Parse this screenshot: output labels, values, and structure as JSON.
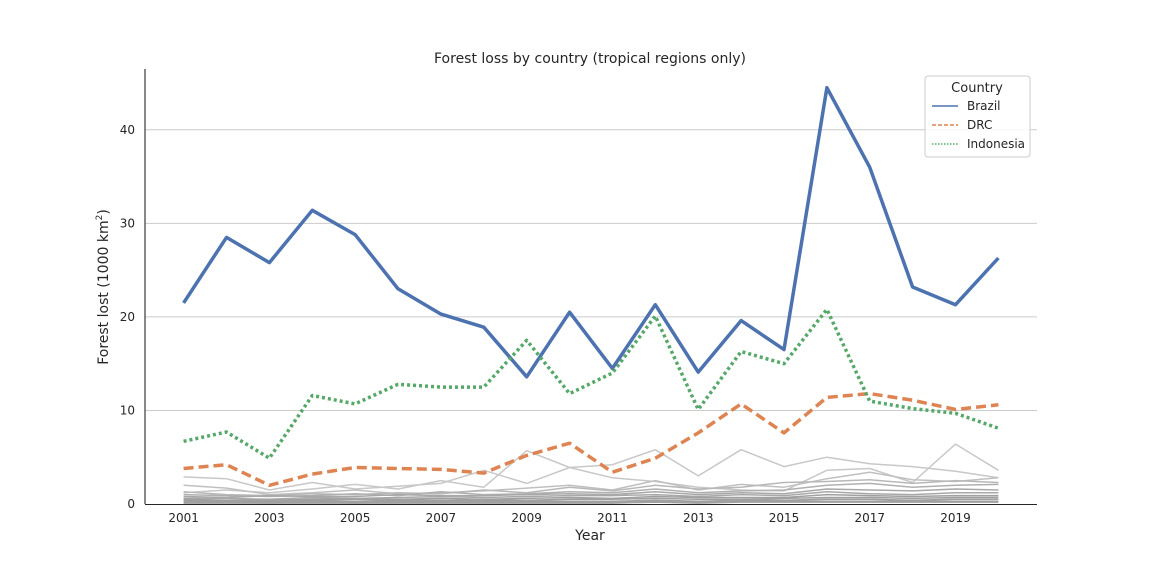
{
  "chart_data": {
    "type": "line",
    "title": "Forest loss by country (tropical regions only)",
    "xlabel": "Year",
    "ylabel": "Forest lost (1000 km",
    "ylabel_sup": "2",
    "ylabel_end": ")",
    "xlim": [
      2000.1,
      2020.9
    ],
    "ylim": [
      0,
      46.5
    ],
    "x_ticks": [
      2001,
      2003,
      2005,
      2007,
      2009,
      2011,
      2013,
      2015,
      2017,
      2019
    ],
    "y_ticks": [
      0,
      10,
      20,
      30,
      40
    ],
    "grid": "y",
    "legend": {
      "title": "Country",
      "placement": "top-right"
    },
    "x": [
      2001,
      2002,
      2003,
      2004,
      2005,
      2006,
      2007,
      2008,
      2009,
      2010,
      2011,
      2012,
      2013,
      2014,
      2015,
      2016,
      2017,
      2018,
      2019,
      2020
    ],
    "series": [
      {
        "name": "Brazil",
        "color": "#4c72b0",
        "dash": "solid",
        "values": [
          21.5,
          28.5,
          25.8,
          31.4,
          28.8,
          23.0,
          20.3,
          18.9,
          13.6,
          20.5,
          14.5,
          21.3,
          14.1,
          19.6,
          16.5,
          44.5,
          36.0,
          23.2,
          21.3,
          26.3
        ]
      },
      {
        "name": "DRC",
        "color": "#dd8452",
        "dash": "dashed",
        "values": [
          3.8,
          4.2,
          2.0,
          3.2,
          3.9,
          3.8,
          3.7,
          3.3,
          5.2,
          6.5,
          3.4,
          4.9,
          7.6,
          10.7,
          7.6,
          11.4,
          11.8,
          11.1,
          10.1,
          10.6
        ]
      },
      {
        "name": "Indonesia",
        "color": "#55a868",
        "dash": "dotted",
        "values": [
          6.7,
          7.7,
          4.9,
          11.6,
          10.7,
          12.8,
          12.5,
          12.5,
          17.5,
          11.8,
          14.0,
          20.1,
          10.1,
          16.3,
          15.0,
          20.8,
          11.0,
          10.2,
          9.7,
          8.1
        ]
      }
    ],
    "background_series": [
      {
        "color": "#c8c8c8",
        "values": [
          2.9,
          2.7,
          1.5,
          2.3,
          1.6,
          1.9,
          2.2,
          3.6,
          2.2,
          3.9,
          4.2,
          5.8,
          3.0,
          5.8,
          4.0,
          5.0,
          4.3,
          4.0,
          3.5,
          2.8
        ]
      },
      {
        "color": "#c8c8c8",
        "values": [
          1.2,
          1.5,
          1.2,
          1.6,
          2.1,
          1.6,
          2.5,
          1.8,
          5.7,
          3.9,
          2.8,
          2.4,
          1.8,
          1.5,
          1.4,
          3.6,
          3.8,
          2.3,
          6.4,
          3.6
        ]
      },
      {
        "color": "#c0c0c0",
        "values": [
          2.0,
          1.7,
          1.0,
          1.2,
          1.5,
          1.1,
          1.2,
          1.4,
          1.7,
          2.0,
          1.5,
          2.5,
          1.5,
          2.1,
          1.8,
          2.7,
          3.4,
          2.6,
          2.4,
          2.8
        ]
      },
      {
        "color": "#b8b8b8",
        "values": [
          1.3,
          1.0,
          0.9,
          1.1,
          1.0,
          1.2,
          1.1,
          1.5,
          1.2,
          1.8,
          1.4,
          2.0,
          1.6,
          1.8,
          2.3,
          2.4,
          2.6,
          2.2,
          2.5,
          2.3
        ]
      },
      {
        "color": "#b0b0b0",
        "values": [
          1.0,
          0.9,
          0.8,
          0.9,
          1.1,
          0.9,
          1.3,
          1.0,
          1.1,
          1.3,
          1.2,
          1.6,
          1.2,
          1.4,
          1.5,
          2.0,
          2.2,
          1.8,
          2.0,
          2.1
        ]
      },
      {
        "color": "#a8a8a8",
        "values": [
          0.8,
          0.7,
          0.9,
          0.8,
          0.8,
          1.0,
          0.9,
          0.9,
          1.0,
          1.1,
          1.0,
          1.3,
          1.0,
          1.2,
          1.1,
          1.6,
          1.5,
          1.4,
          1.6,
          1.5
        ]
      },
      {
        "color": "#a8a8a8",
        "values": [
          0.6,
          0.6,
          0.5,
          0.7,
          0.6,
          0.7,
          0.8,
          0.7,
          0.8,
          0.9,
          0.9,
          1.0,
          0.8,
          1.0,
          0.9,
          1.3,
          1.1,
          1.0,
          1.2,
          1.2
        ]
      },
      {
        "color": "#a0a0a0",
        "values": [
          0.5,
          0.4,
          0.4,
          0.5,
          0.5,
          0.5,
          0.6,
          0.5,
          0.6,
          0.7,
          0.6,
          0.8,
          0.7,
          0.7,
          0.7,
          1.0,
          0.9,
          0.8,
          0.9,
          0.9
        ]
      },
      {
        "color": "#a0a0a0",
        "values": [
          0.4,
          0.3,
          0.3,
          0.4,
          0.3,
          0.4,
          0.4,
          0.4,
          0.4,
          0.5,
          0.5,
          0.6,
          0.5,
          0.5,
          0.6,
          0.7,
          0.7,
          0.6,
          0.7,
          0.7
        ]
      },
      {
        "color": "#a0a0a0",
        "values": [
          0.3,
          0.2,
          0.2,
          0.3,
          0.2,
          0.3,
          0.3,
          0.3,
          0.3,
          0.3,
          0.3,
          0.4,
          0.3,
          0.4,
          0.4,
          0.5,
          0.5,
          0.4,
          0.5,
          0.5
        ]
      },
      {
        "color": "#a0a0a0",
        "values": [
          0.2,
          0.2,
          0.1,
          0.2,
          0.1,
          0.2,
          0.2,
          0.2,
          0.2,
          0.2,
          0.2,
          0.3,
          0.2,
          0.3,
          0.3,
          0.3,
          0.3,
          0.3,
          0.3,
          0.3
        ]
      },
      {
        "color": "#a0a0a0",
        "values": [
          0.1,
          0.1,
          0.1,
          0.1,
          0.1,
          0.1,
          0.1,
          0.1,
          0.1,
          0.1,
          0.1,
          0.2,
          0.1,
          0.2,
          0.2,
          0.2,
          0.2,
          0.2,
          0.2,
          0.2
        ]
      }
    ]
  }
}
